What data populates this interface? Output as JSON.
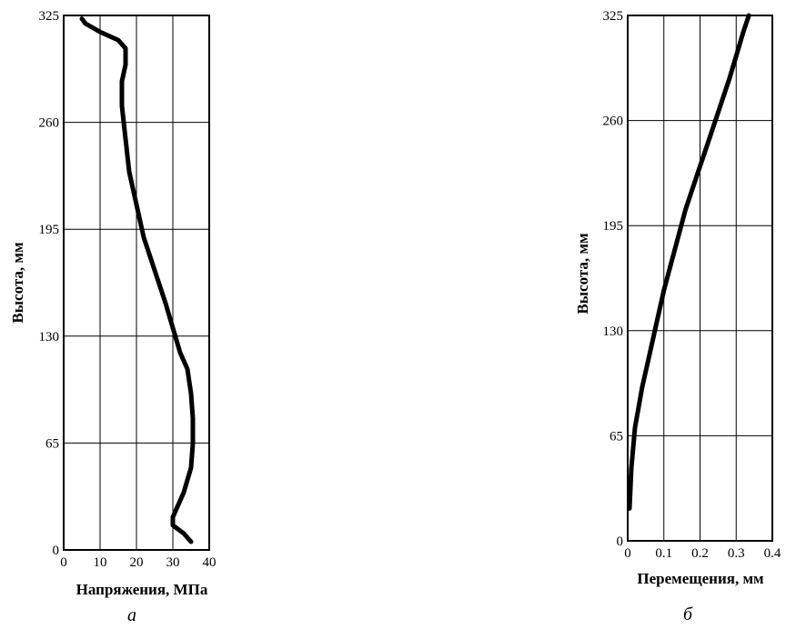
{
  "chart_data": [
    {
      "type": "line",
      "panel_label": "а",
      "xlabel": "Напряжения, МПа",
      "ylabel": "Высота, мм",
      "xlim": [
        0,
        40
      ],
      "ylim": [
        0,
        325
      ],
      "xticks": [
        "0",
        "10",
        "20",
        "30",
        "40"
      ],
      "yticks": [
        "0",
        "65",
        "130",
        "195",
        "260",
        "325"
      ],
      "grid": true,
      "series": [
        {
          "x": [
            35,
            33,
            30,
            30,
            31,
            33,
            35,
            35.5,
            35.5,
            35,
            34,
            32,
            30,
            28,
            25,
            22,
            20,
            18,
            17,
            16,
            16,
            17,
            17,
            15,
            10,
            6,
            5
          ],
          "y": [
            5,
            10,
            15,
            20,
            25,
            35,
            50,
            65,
            80,
            95,
            110,
            120,
            135,
            150,
            170,
            190,
            210,
            230,
            250,
            270,
            285,
            295,
            305,
            310,
            315,
            320,
            323
          ]
        }
      ]
    },
    {
      "type": "line",
      "panel_label": "б",
      "xlabel": "Перемещения, мм",
      "ylabel": "Высота, мм",
      "xlim": [
        0,
        0.4
      ],
      "ylim": [
        0,
        325
      ],
      "xticks": [
        "0",
        "0.1",
        "0.2",
        "0.3",
        "0.4"
      ],
      "yticks": [
        "0",
        "65",
        "130",
        "195",
        "260",
        "325"
      ],
      "grid": true,
      "series": [
        {
          "x": [
            0.005,
            0.01,
            0.02,
            0.04,
            0.06,
            0.08,
            0.1,
            0.13,
            0.16,
            0.19,
            0.22,
            0.25,
            0.28,
            0.3,
            0.32,
            0.335
          ],
          "y": [
            20,
            45,
            70,
            95,
            115,
            135,
            155,
            180,
            205,
            225,
            245,
            265,
            285,
            300,
            315,
            325
          ]
        }
      ]
    }
  ]
}
